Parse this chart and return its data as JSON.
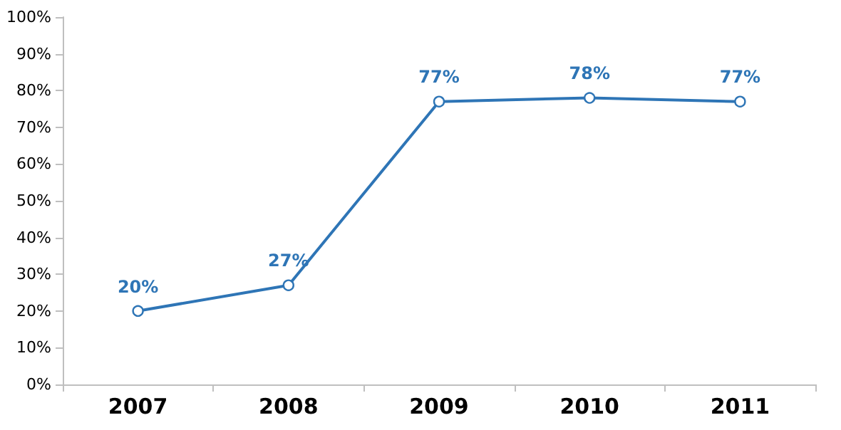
{
  "chart_data": {
    "type": "line",
    "categories": [
      "2007",
      "2008",
      "2009",
      "2010",
      "2011"
    ],
    "series": [
      {
        "color": "#2e75b6",
        "values": [
          20,
          27,
          77,
          78,
          77
        ],
        "value_labels": [
          "20%",
          "27%",
          "77%",
          "78%",
          "77%"
        ]
      }
    ],
    "ylim": [
      0,
      100
    ],
    "yticks": [
      {
        "value": 0,
        "label": "0%"
      },
      {
        "value": 10,
        "label": "10%"
      },
      {
        "value": 20,
        "label": "20%"
      },
      {
        "value": 30,
        "label": "30%"
      },
      {
        "value": 40,
        "label": "40%"
      },
      {
        "value": 50,
        "label": "50%"
      },
      {
        "value": 60,
        "label": "60%"
      },
      {
        "value": 70,
        "label": "70%"
      },
      {
        "value": 80,
        "label": "80%"
      },
      {
        "value": 90,
        "label": "90%"
      },
      {
        "value": 100,
        "label": "100%"
      }
    ],
    "grid": false,
    "marker": "circle",
    "line_style": "solid"
  }
}
